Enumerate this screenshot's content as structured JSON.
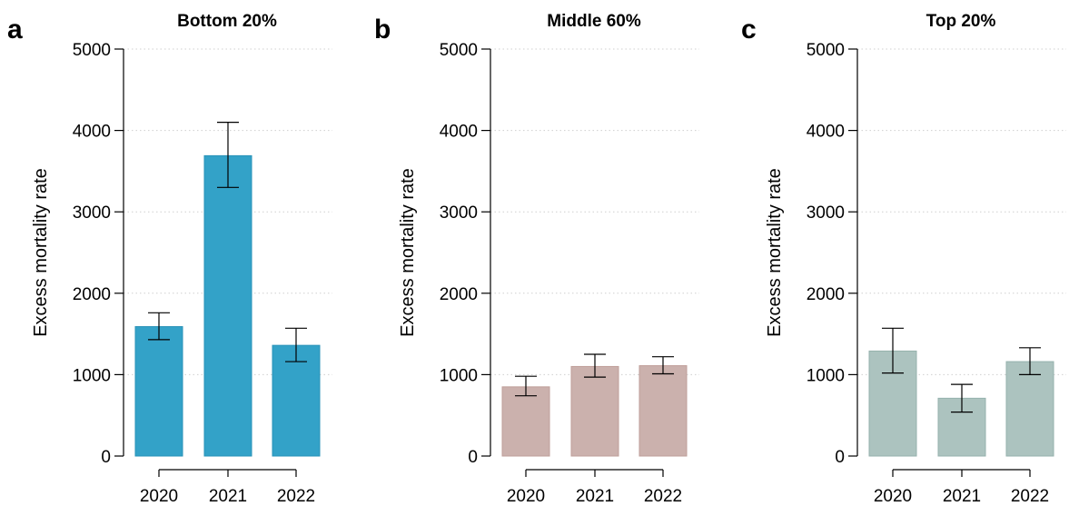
{
  "chart_data": [
    {
      "type": "bar",
      "panel": "a",
      "title": "Bottom 20%",
      "ylabel": "Excess mortality rate",
      "xlabel": "",
      "categories": [
        "2020",
        "2021",
        "2022"
      ],
      "values": [
        1590,
        3690,
        1360
      ],
      "error_low": [
        1430,
        3300,
        1160
      ],
      "error_high": [
        1760,
        4100,
        1570
      ],
      "ylim": [
        0,
        5000
      ],
      "yticks": [
        "0",
        "1000",
        "2000",
        "3000",
        "4000",
        "5000"
      ],
      "grid": "horizontal dotted",
      "bar_color": "#33a2c8",
      "bar_edge": "#2a93b8"
    },
    {
      "type": "bar",
      "panel": "b",
      "title": "Middle 60%",
      "ylabel": "Excess mortality rate",
      "xlabel": "",
      "categories": [
        "2020",
        "2021",
        "2022"
      ],
      "values": [
        850,
        1100,
        1110
      ],
      "error_low": [
        740,
        970,
        1010
      ],
      "error_high": [
        980,
        1250,
        1220
      ],
      "ylim": [
        0,
        5000
      ],
      "yticks": [
        "0",
        "1000",
        "2000",
        "3000",
        "4000",
        "5000"
      ],
      "grid": "horizontal dotted",
      "bar_color": "#cbb1ad",
      "bar_edge": "#bf9f9a"
    },
    {
      "type": "bar",
      "panel": "c",
      "title": "Top 20%",
      "ylabel": "Excess mortality rate",
      "xlabel": "",
      "categories": [
        "2020",
        "2021",
        "2022"
      ],
      "values": [
        1290,
        710,
        1160
      ],
      "error_low": [
        1020,
        540,
        1000
      ],
      "error_high": [
        1570,
        880,
        1330
      ],
      "ylim": [
        0,
        5000
      ],
      "yticks": [
        "0",
        "1000",
        "2000",
        "3000",
        "4000",
        "5000"
      ],
      "grid": "horizontal dotted",
      "bar_color": "#acc3bf",
      "bar_edge": "#96b2ad"
    }
  ]
}
